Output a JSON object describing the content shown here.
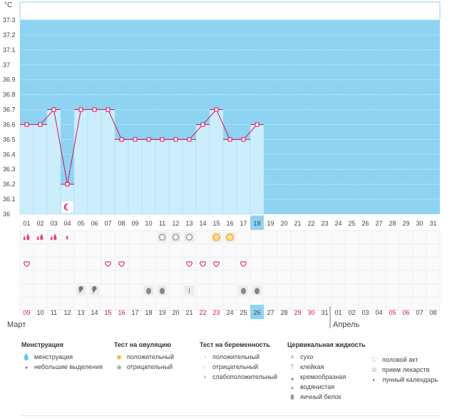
{
  "chart_data": {
    "type": "bar",
    "unit_label": "°C",
    "ylim": [
      36,
      37.3
    ],
    "y_ticks": [
      "36",
      "36.1",
      "36.2",
      "36.3",
      "36.4",
      "36.5",
      "36.6",
      "36.7",
      "36.8",
      "36.9",
      "37",
      "37.1",
      "37.2",
      "37.3"
    ],
    "cycle_days": [
      "01",
      "02",
      "03",
      "04",
      "05",
      "06",
      "07",
      "08",
      "09",
      "10",
      "11",
      "12",
      "13",
      "14",
      "15",
      "16",
      "17",
      "18",
      "19",
      "20",
      "21",
      "22",
      "23",
      "24",
      "25",
      "26",
      "27",
      "28",
      "29",
      "30",
      "31"
    ],
    "temperatures": [
      36.6,
      36.6,
      36.7,
      36.2,
      36.7,
      36.7,
      36.7,
      36.5,
      36.5,
      36.5,
      36.5,
      36.5,
      36.5,
      36.6,
      36.7,
      36.5,
      36.5,
      36.6
    ],
    "current_day_index": 17,
    "calendar_dates": [
      "09",
      "10",
      "11",
      "12",
      "13",
      "14",
      "15",
      "16",
      "17",
      "18",
      "19",
      "20",
      "21",
      "22",
      "23",
      "24",
      "25",
      "26",
      "27",
      "28",
      "29",
      "30",
      "31",
      "01",
      "02",
      "03",
      "04",
      "05",
      "06",
      "07",
      "08"
    ],
    "weekend_indices": [
      0,
      6,
      7,
      13,
      14,
      20,
      21,
      27,
      28
    ],
    "month_left": "Март",
    "month_right": "Апрель",
    "month_divider_index": 23,
    "colors": {
      "sky": "#8fd3f3",
      "bar": "#ccedfb",
      "bar_border": "#a9dcf4",
      "line": "#d4145a",
      "current": "#8fd3f3",
      "weekend": "#d4145a"
    },
    "symbols": {
      "moon": [
        3
      ],
      "menstruation": [
        0,
        1,
        2
      ],
      "spotting": [
        0,
        1,
        2,
        3
      ],
      "ovulation_positive": [
        14,
        15
      ],
      "ovulation_negative": [
        10,
        11,
        12
      ],
      "intercourse": [
        0,
        6,
        7,
        12,
        13,
        14,
        16
      ],
      "creamy": [
        4,
        5
      ],
      "egg_white": [
        9,
        10,
        16,
        17
      ],
      "sticky": [
        12
      ]
    }
  },
  "legend": [
    {
      "title": "Менструация",
      "items": [
        {
          "icon": "menstruation-icon",
          "label": "менструация"
        },
        {
          "icon": "spotting-icon",
          "label": "небольшие выделения"
        }
      ]
    },
    {
      "title": "Тест на овуляцию",
      "items": [
        {
          "icon": "ovulation-positive-icon",
          "label": "положительный"
        },
        {
          "icon": "ovulation-negative-icon",
          "label": "отрицательный"
        }
      ]
    },
    {
      "title": "Тест на беременность",
      "items": [
        {
          "icon": "pregnancy-positive-icon",
          "label": "положительный"
        },
        {
          "icon": "pregnancy-negative-icon",
          "label": "отрицательный"
        },
        {
          "icon": "pregnancy-weak-icon",
          "label": "слабоположительный"
        }
      ]
    },
    {
      "title": "Цервикальная жидкость",
      "items": [
        {
          "icon": "dry-icon",
          "label": "сухо"
        },
        {
          "icon": "sticky-icon",
          "label": "клейкая"
        },
        {
          "icon": "creamy-icon",
          "label": "кремообразная"
        },
        {
          "icon": "watery-icon",
          "label": "водянистая"
        },
        {
          "icon": "egg-white-icon",
          "label": "яичный белок"
        }
      ]
    },
    {
      "title": "",
      "items": [
        {
          "icon": "intercourse-icon",
          "label": "половой акт"
        },
        {
          "icon": "medication-icon",
          "label": "прием лекарств"
        },
        {
          "icon": "lunar-calendar-icon",
          "label": "лунный календарь"
        }
      ]
    }
  ]
}
